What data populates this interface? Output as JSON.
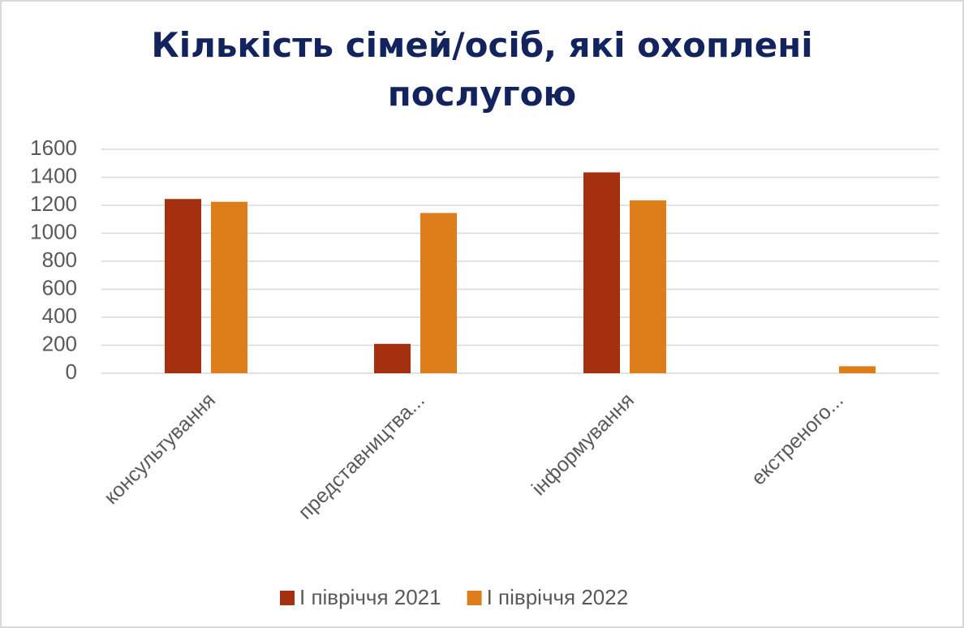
{
  "chart_data": {
    "type": "bar",
    "title": "Кількість сімей/осіб, які охоплені послугою",
    "categories": [
      "консультування",
      "представництва...",
      "інформування",
      "екстреного..."
    ],
    "series": [
      {
        "name": "І півріччя 2021",
        "color": "#a5300f",
        "values": [
          1245,
          210,
          1435,
          0
        ]
      },
      {
        "name": "І півріччя 2022",
        "color": "#de7e1a",
        "values": [
          1225,
          1145,
          1235,
          50
        ]
      }
    ],
    "ylim": [
      0,
      1600
    ],
    "yticks": [
      0,
      200,
      400,
      600,
      800,
      1000,
      1200,
      1400,
      1600
    ],
    "grid": true,
    "legend": "bottom"
  }
}
